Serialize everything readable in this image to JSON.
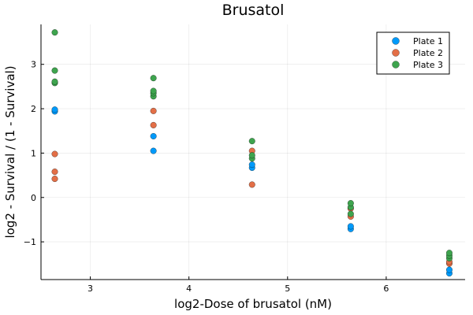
{
  "chart_data": {
    "type": "scatter",
    "title": "Brusatol",
    "xlabel": "log2-Dose of brusatol (nM)",
    "ylabel": "log2 - Survival / (1 - Survival)",
    "xlim": [
      2.5,
      6.8
    ],
    "ylim": [
      -1.85,
      3.9
    ],
    "xticks": [
      3,
      4,
      5,
      6
    ],
    "yticks": [
      -1,
      0,
      1,
      2,
      3
    ],
    "xtick_labels": [
      "3",
      "4",
      "5",
      "6"
    ],
    "ytick_labels": [
      "−1",
      "0",
      "1",
      "2",
      "3"
    ],
    "grid": true,
    "legend_position": "top-right",
    "series": [
      {
        "name": "Plate 1",
        "color": "#009AFA",
        "points": [
          [
            2.64,
            1.94
          ],
          [
            2.64,
            1.98
          ],
          [
            3.64,
            1.05
          ],
          [
            3.64,
            1.38
          ],
          [
            4.64,
            0.67
          ],
          [
            4.64,
            0.74
          ],
          [
            5.64,
            -0.71
          ],
          [
            5.64,
            -0.65
          ],
          [
            6.64,
            -1.71
          ],
          [
            6.64,
            -1.63
          ]
        ]
      },
      {
        "name": "Plate 2",
        "color": "#E36F47",
        "points": [
          [
            2.64,
            0.42
          ],
          [
            2.64,
            0.58
          ],
          [
            2.64,
            0.98
          ],
          [
            3.64,
            1.63
          ],
          [
            3.64,
            1.95
          ],
          [
            4.64,
            0.29
          ],
          [
            4.64,
            1.05
          ],
          [
            5.64,
            -0.43
          ],
          [
            5.64,
            -0.25
          ],
          [
            6.64,
            -1.49
          ],
          [
            6.64,
            -1.45
          ]
        ]
      },
      {
        "name": "Plate 3",
        "color": "#3EA44E",
        "points": [
          [
            2.64,
            2.58
          ],
          [
            2.64,
            2.61
          ],
          [
            2.64,
            2.86
          ],
          [
            2.64,
            3.72
          ],
          [
            3.64,
            2.28
          ],
          [
            3.64,
            2.35
          ],
          [
            3.64,
            2.4
          ],
          [
            3.64,
            2.69
          ],
          [
            4.64,
            0.88
          ],
          [
            4.64,
            0.95
          ],
          [
            4.64,
            1.27
          ],
          [
            5.64,
            -0.37
          ],
          [
            5.64,
            -0.22
          ],
          [
            5.64,
            -0.13
          ],
          [
            6.64,
            -1.37
          ],
          [
            6.64,
            -1.31
          ],
          [
            6.64,
            -1.25
          ]
        ]
      }
    ]
  }
}
